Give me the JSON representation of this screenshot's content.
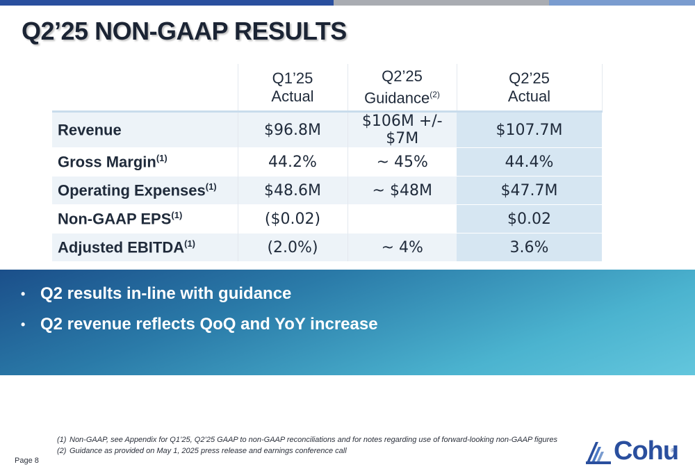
{
  "slide": {
    "title": "Q2’25 NON-GAAP RESULTS",
    "page_label": "Page 8"
  },
  "table": {
    "columns": [
      {
        "line1": "Q1’25",
        "line2": "Actual",
        "sup": ""
      },
      {
        "line1": "Q2’25",
        "line2": "Guidance",
        "sup": "(2)"
      },
      {
        "line1": "Q2’25",
        "line2": "Actual",
        "sup": ""
      }
    ],
    "rows": [
      {
        "label": "Revenue",
        "sup": "",
        "q1_actual": "$96.8M",
        "q2_guidance": "$106M +/- $7M",
        "q2_actual": "$107.7M"
      },
      {
        "label": "Gross Margin",
        "sup": "(1)",
        "q1_actual": "44.2%",
        "q2_guidance": "~ 45%",
        "q2_actual": "44.4%"
      },
      {
        "label": "Operating Expenses",
        "sup": "(1)",
        "q1_actual": "$48.6M",
        "q2_guidance": "~ $48M",
        "q2_actual": "$47.7M"
      },
      {
        "label": "Non-GAAP EPS",
        "sup": "(1)",
        "q1_actual": "($0.02)",
        "q2_guidance": "",
        "q2_actual": "$0.02"
      },
      {
        "label": "Adjusted EBITDA",
        "sup": "(1)",
        "q1_actual": "(2.0%)",
        "q2_guidance": "~ 4%",
        "q2_actual": "3.6%"
      }
    ]
  },
  "highlights": {
    "bullet_glyph": "•",
    "items": [
      "Q2 results in-line with guidance",
      "Q2 revenue reflects QoQ and YoY increase"
    ]
  },
  "footnotes": [
    {
      "num": "(1)",
      "text": "Non-GAAP, see Appendix for Q1’25, Q2’25 GAAP to non-GAAP reconciliations and for notes regarding use of forward-looking non-GAAP figures"
    },
    {
      "num": "(2)",
      "text": "Guidance as provided on May 1, 2025 press release and earnings conference call"
    }
  ],
  "logo": {
    "text": "Cohu",
    "registered": "®",
    "icon": "cohu-stripes-logo-icon"
  },
  "colors": {
    "brand_blue": "#2a4f9e",
    "highlight_column": "#d6e6f2",
    "row_shade": "#edf3f8"
  }
}
